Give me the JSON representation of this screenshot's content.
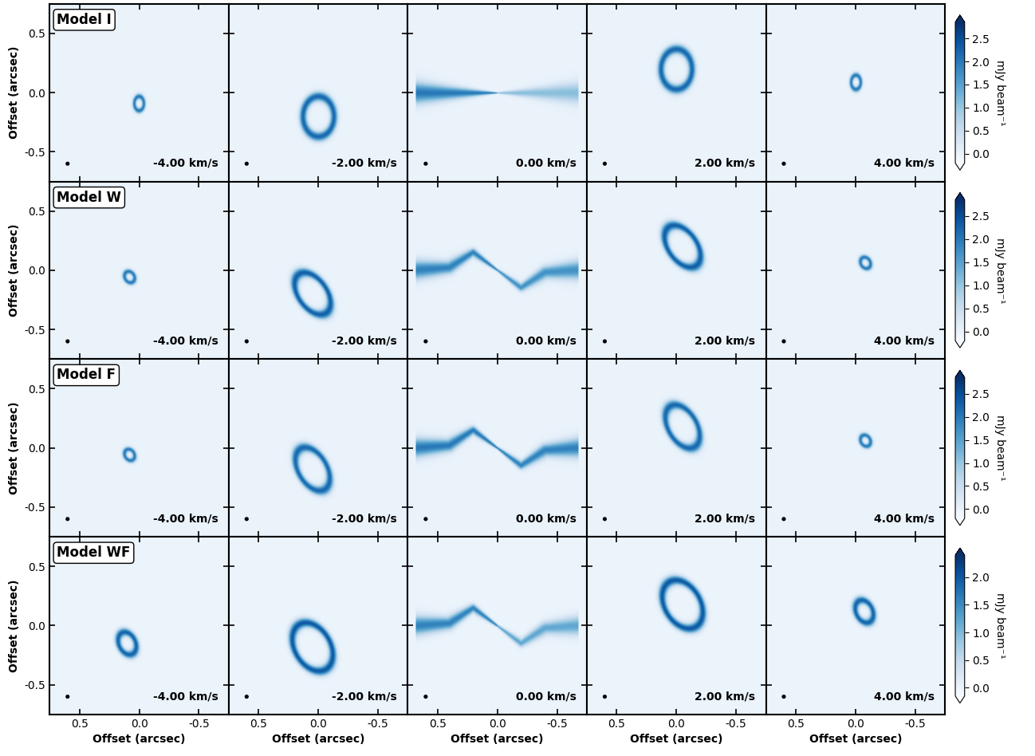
{
  "chart_data": {
    "type": "channel_maps",
    "xlabel": "Offset (arcsec)",
    "ylabel": "Offset (arcsec)",
    "xlim": [
      0.75,
      -0.75
    ],
    "ylim": [
      -0.75,
      0.75
    ],
    "xticks": [
      0.5,
      0.0,
      -0.5
    ],
    "yticks": [
      -0.5,
      0.0,
      0.5
    ],
    "colorbar_label": "mJy beam⁻¹",
    "color": "Blues",
    "beam": {
      "center": [
        0.6,
        -0.6
      ],
      "diameter": 0.025
    },
    "rows": [
      {
        "model": "Model I",
        "clim": [
          -0.2,
          2.85
        ],
        "cticks": [
          0.0,
          0.5,
          1.0,
          1.5,
          2.0,
          2.5
        ],
        "channels": [
          {
            "label": "-4.00 km/s",
            "features": [
              {
                "shape": "ring",
                "center": [
                  0.0,
                  -0.09
                ],
                "axes": [
                  0.04,
                  0.06
                ],
                "angle": 0,
                "width": 0.02,
                "peak": 2.0
              }
            ]
          },
          {
            "label": "-2.00 km/s",
            "features": [
              {
                "shape": "ring",
                "center": [
                  0.0,
                  -0.2
                ],
                "axes": [
                  0.13,
                  0.17
                ],
                "angle": 0,
                "width": 0.035,
                "peak": 2.2
              }
            ]
          },
          {
            "label": "0.00 km/s",
            "features": [
              {
                "shape": "ridge",
                "path": [
                  [
                    0.68,
                    0.0
                  ],
                  [
                    0.0,
                    0.0
                  ]
                ],
                "width_center": 0.005,
                "width_end": 0.09,
                "peak": 2.0
              },
              {
                "shape": "ridge",
                "path": [
                  [
                    0.0,
                    0.0
                  ],
                  [
                    -0.68,
                    0.0
                  ]
                ],
                "width_center": 0.005,
                "width_end": 0.09,
                "peak": 1.1
              }
            ]
          },
          {
            "label": "2.00 km/s",
            "features": [
              {
                "shape": "ring",
                "center": [
                  0.0,
                  0.2
                ],
                "axes": [
                  0.13,
                  0.17
                ],
                "angle": 0,
                "width": 0.035,
                "peak": 2.2
              }
            ]
          },
          {
            "label": "4.00 km/s",
            "features": [
              {
                "shape": "ring",
                "center": [
                  0.0,
                  0.09
                ],
                "axes": [
                  0.04,
                  0.06
                ],
                "angle": 0,
                "width": 0.02,
                "peak": 2.0
              }
            ]
          }
        ]
      },
      {
        "model": "Model W",
        "clim": [
          -0.2,
          2.85
        ],
        "cticks": [
          0.0,
          0.5,
          1.0,
          1.5,
          2.0,
          2.5
        ],
        "channels": [
          {
            "label": "-4.00 km/s",
            "features": [
              {
                "shape": "ring",
                "center": [
                  0.08,
                  -0.06
                ],
                "axes": [
                  0.04,
                  0.05
                ],
                "angle": -30,
                "width": 0.02,
                "peak": 2.0
              }
            ]
          },
          {
            "label": "-2.00 km/s",
            "features": [
              {
                "shape": "ring",
                "center": [
                  0.05,
                  -0.2
                ],
                "axes": [
                  0.12,
                  0.2
                ],
                "angle": -35,
                "width": 0.035,
                "peak": 2.3
              }
            ]
          },
          {
            "label": "0.00 km/s",
            "features": [
              {
                "shape": "ridge",
                "path": [
                  [
                    0.68,
                    0.0
                  ],
                  [
                    0.4,
                    0.02
                  ],
                  [
                    0.2,
                    0.15
                  ],
                  [
                    0.0,
                    0.0
                  ]
                ],
                "width_center": 0.01,
                "width_end": 0.08,
                "peak": 1.9
              },
              {
                "shape": "ridge",
                "path": [
                  [
                    0.0,
                    0.0
                  ],
                  [
                    -0.2,
                    -0.15
                  ],
                  [
                    -0.4,
                    -0.02
                  ],
                  [
                    -0.68,
                    0.0
                  ]
                ],
                "width_center": 0.01,
                "width_end": 0.08,
                "peak": 1.7
              }
            ]
          },
          {
            "label": "2.00 km/s",
            "features": [
              {
                "shape": "ring",
                "center": [
                  -0.05,
                  0.2
                ],
                "axes": [
                  0.12,
                  0.2
                ],
                "angle": -35,
                "width": 0.035,
                "peak": 2.3
              }
            ]
          },
          {
            "label": "4.00 km/s",
            "features": [
              {
                "shape": "ring",
                "center": [
                  -0.08,
                  0.06
                ],
                "axes": [
                  0.04,
                  0.05
                ],
                "angle": -30,
                "width": 0.02,
                "peak": 2.0
              }
            ]
          }
        ]
      },
      {
        "model": "Model F",
        "clim": [
          -0.2,
          2.85
        ],
        "cticks": [
          0.0,
          0.5,
          1.0,
          1.5,
          2.0,
          2.5
        ],
        "channels": [
          {
            "label": "-4.00 km/s",
            "features": [
              {
                "shape": "ring",
                "center": [
                  0.08,
                  -0.06
                ],
                "axes": [
                  0.04,
                  0.05
                ],
                "angle": -30,
                "width": 0.02,
                "peak": 2.0
              }
            ]
          },
          {
            "label": "-2.00 km/s",
            "features": [
              {
                "shape": "ring",
                "center": [
                  0.05,
                  -0.18
                ],
                "axes": [
                  0.12,
                  0.2
                ],
                "angle": -30,
                "width": 0.035,
                "peak": 2.2
              }
            ]
          },
          {
            "label": "0.00 km/s",
            "features": [
              {
                "shape": "ridge",
                "path": [
                  [
                    0.68,
                    0.0
                  ],
                  [
                    0.4,
                    0.02
                  ],
                  [
                    0.2,
                    0.15
                  ],
                  [
                    0.0,
                    0.0
                  ]
                ],
                "width_center": 0.01,
                "width_end": 0.08,
                "peak": 2.0
              },
              {
                "shape": "ridge",
                "path": [
                  [
                    0.0,
                    0.0
                  ],
                  [
                    -0.2,
                    -0.15
                  ],
                  [
                    -0.4,
                    -0.02
                  ],
                  [
                    -0.68,
                    0.0
                  ]
                ],
                "width_center": 0.01,
                "width_end": 0.08,
                "peak": 1.9
              }
            ]
          },
          {
            "label": "2.00 km/s",
            "features": [
              {
                "shape": "ring",
                "center": [
                  -0.05,
                  0.18
                ],
                "axes": [
                  0.12,
                  0.2
                ],
                "angle": -30,
                "width": 0.035,
                "peak": 2.2
              }
            ]
          },
          {
            "label": "4.00 km/s",
            "features": [
              {
                "shape": "ring",
                "center": [
                  -0.08,
                  0.06
                ],
                "axes": [
                  0.04,
                  0.05
                ],
                "angle": -30,
                "width": 0.02,
                "peak": 2.0
              }
            ]
          }
        ]
      },
      {
        "model": "Model WF",
        "clim": [
          -0.15,
          2.4
        ],
        "cticks": [
          0.0,
          0.5,
          1.0,
          1.5,
          2.0
        ],
        "channels": [
          {
            "label": "-4.00 km/s",
            "features": [
              {
                "shape": "ring",
                "center": [
                  0.1,
                  -0.15
                ],
                "axes": [
                  0.07,
                  0.1
                ],
                "angle": -25,
                "width": 0.03,
                "peak": 1.9
              }
            ]
          },
          {
            "label": "-2.00 km/s",
            "features": [
              {
                "shape": "ring",
                "center": [
                  0.05,
                  -0.18
                ],
                "axes": [
                  0.15,
                  0.22
                ],
                "angle": -30,
                "width": 0.035,
                "peak": 2.0
              }
            ]
          },
          {
            "label": "0.00 km/s",
            "features": [
              {
                "shape": "ridge",
                "path": [
                  [
                    0.68,
                    0.0
                  ],
                  [
                    0.4,
                    0.02
                  ],
                  [
                    0.2,
                    0.15
                  ],
                  [
                    0.0,
                    0.0
                  ]
                ],
                "width_center": 0.01,
                "width_end": 0.08,
                "peak": 1.6
              },
              {
                "shape": "ridge",
                "path": [
                  [
                    0.0,
                    0.0
                  ],
                  [
                    -0.2,
                    -0.15
                  ],
                  [
                    -0.4,
                    -0.02
                  ],
                  [
                    -0.68,
                    0.0
                  ]
                ],
                "width_center": 0.01,
                "width_end": 0.08,
                "peak": 1.2
              }
            ]
          },
          {
            "label": "2.00 km/s",
            "features": [
              {
                "shape": "ring",
                "center": [
                  -0.05,
                  0.18
                ],
                "axes": [
                  0.15,
                  0.22
                ],
                "angle": -30,
                "width": 0.035,
                "peak": 2.0
              }
            ]
          },
          {
            "label": "4.00 km/s",
            "features": [
              {
                "shape": "ring",
                "center": [
                  -0.07,
                  0.12
                ],
                "axes": [
                  0.07,
                  0.1
                ],
                "angle": -25,
                "width": 0.03,
                "peak": 1.9
              }
            ]
          }
        ]
      }
    ]
  }
}
